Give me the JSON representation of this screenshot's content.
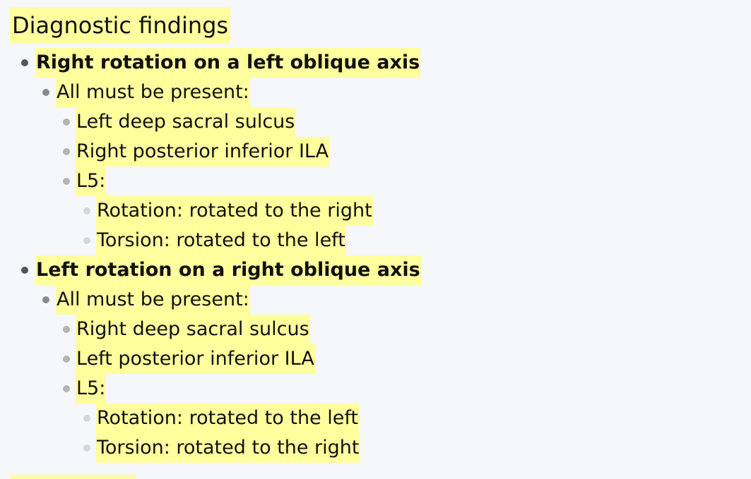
{
  "heading": "Diagnostic findings",
  "items": [
    {
      "text": "Right rotation on a left oblique axis",
      "level": 1,
      "bold": true
    },
    {
      "text": "All must be present:",
      "level": 2
    },
    {
      "text": "Left deep sacral sulcus",
      "level": 3
    },
    {
      "text": "Right posterior inferior ILA",
      "level": 3
    },
    {
      "text": "L5:",
      "level": 3
    },
    {
      "text": "Rotation: rotated to the right",
      "level": 4
    },
    {
      "text": "Torsion: rotated to the left",
      "level": 4
    },
    {
      "text": "Left rotation on a right oblique axis",
      "level": 1,
      "bold": true
    },
    {
      "text": "All must be present:",
      "level": 2
    },
    {
      "text": "Right deep sacral sulcus",
      "level": 3
    },
    {
      "text": "Left posterior inferior ILA",
      "level": 3
    },
    {
      "text": "L5:",
      "level": 3
    },
    {
      "text": "Rotation: rotated to the left",
      "level": 4
    },
    {
      "text": "Torsion: rotated to the right",
      "level": 4
    }
  ]
}
